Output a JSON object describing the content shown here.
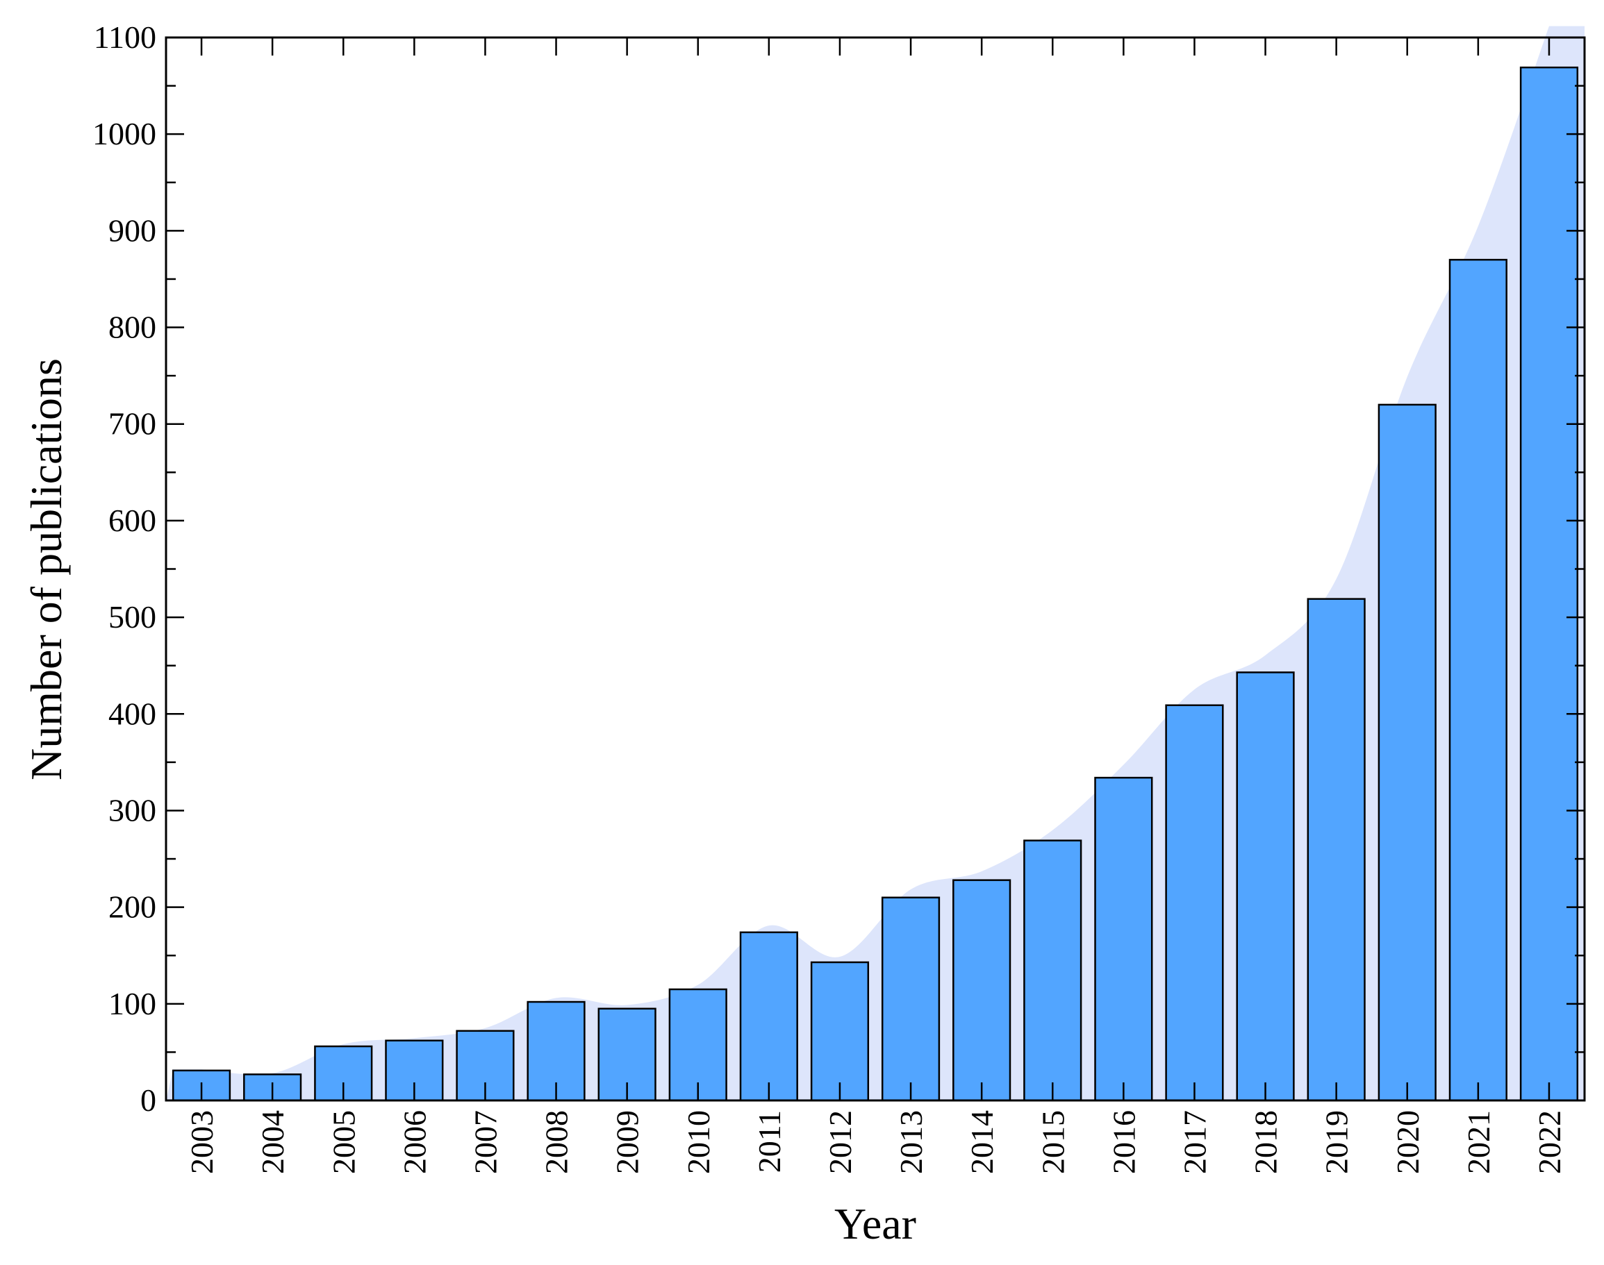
{
  "chart_data": {
    "type": "bar",
    "title": "",
    "xlabel": "Year",
    "ylabel": "Number of publications",
    "categories": [
      "2003",
      "2004",
      "2005",
      "2006",
      "2007",
      "2008",
      "2009",
      "2010",
      "2011",
      "2012",
      "2013",
      "2014",
      "2015",
      "2016",
      "2017",
      "2018",
      "2019",
      "2020",
      "2021",
      "2022"
    ],
    "values": [
      31,
      27,
      56,
      62,
      72,
      102,
      95,
      115,
      174,
      143,
      210,
      228,
      269,
      334,
      409,
      443,
      519,
      720,
      870,
      1069
    ],
    "ylim": [
      0,
      1100
    ],
    "yticks": [
      "0",
      "100",
      "200",
      "300",
      "400",
      "500",
      "600",
      "700",
      "800",
      "900",
      "1000",
      "1100"
    ],
    "grid": false,
    "legend": "none",
    "colors": {
      "bar_fill": "#52a5ff",
      "bar_stroke": "#000000",
      "trend_area": "#dde5fb"
    }
  }
}
